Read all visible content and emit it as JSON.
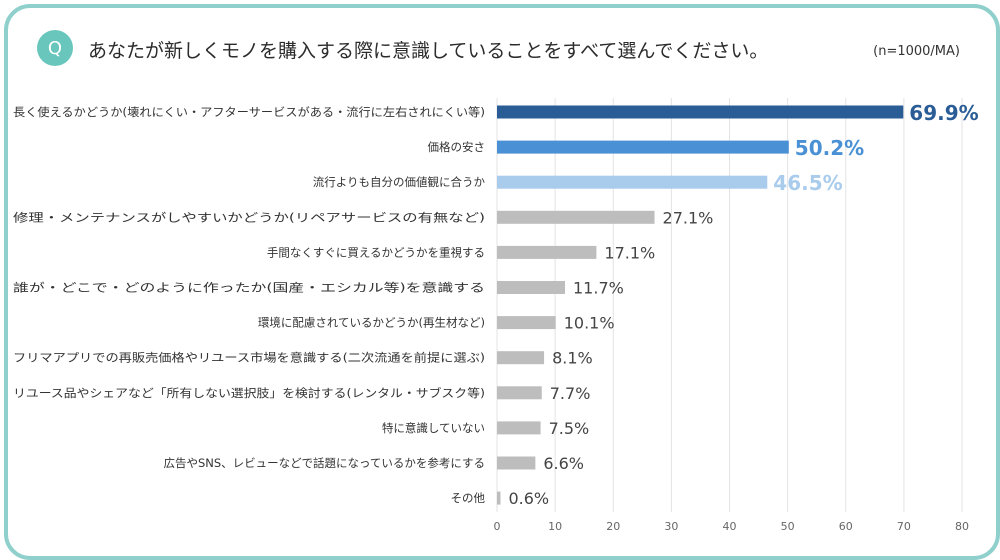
{
  "header": {
    "badge": "Q",
    "question": "あなたが新しくモノを購入する際に意識していることをすべて選んでください。",
    "sample": "(n=1000/MA)"
  },
  "chart_data": {
    "type": "bar",
    "orientation": "horizontal",
    "categories": [
      "長く使えるかどうか(壊れにくい・アフターサービスがある・流行に左右されにくい等)",
      "価格の安さ",
      "流行よりも自分の価値観に合うか",
      "修理・メンテナンスがしやすいかどうか(リペアサービスの有無など)",
      "手間なくすぐに買えるかどうかを重視する",
      "誰が・どこで・どのように作ったか(国産・エシカル等)を意識する",
      "環境に配慮されているかどうか(再生材など)",
      "フリマアプリでの再販売価格やリユース市場を意識する(二次流通を前提に選ぶ)",
      "リユース品やシェアなど「所有しない選択肢」を検討する(レンタル・サブスク等)",
      "特に意識していない",
      "広告やSNS、レビューなどで話題になっているかを参考にする",
      "その他"
    ],
    "values": [
      69.9,
      50.2,
      46.5,
      27.1,
      17.1,
      11.7,
      10.1,
      8.1,
      7.7,
      7.5,
      6.6,
      0.6
    ],
    "value_labels": [
      "69.9%",
      "50.2%",
      "46.5%",
      "27.1%",
      "17.1%",
      "11.7%",
      "10.1%",
      "8.1%",
      "7.7%",
      "7.5%",
      "6.6%",
      "0.6%"
    ],
    "xlim": [
      0,
      80
    ],
    "xticks": [
      0,
      10,
      20,
      30,
      40,
      50,
      60,
      70,
      80
    ],
    "grid": true,
    "colors": [
      "#2a5d96",
      "#4a90d4",
      "#a9cbec",
      "#bdbdbd",
      "#bdbdbd",
      "#bdbdbd",
      "#bdbdbd",
      "#bdbdbd",
      "#bdbdbd",
      "#bdbdbd",
      "#bdbdbd",
      "#bdbdbd"
    ],
    "label_colors": [
      "#2a5d96",
      "#4a90d4",
      "#a9cbec",
      "#444444",
      "#444444",
      "#444444",
      "#444444",
      "#444444",
      "#444444",
      "#444444",
      "#444444",
      "#444444"
    ]
  }
}
